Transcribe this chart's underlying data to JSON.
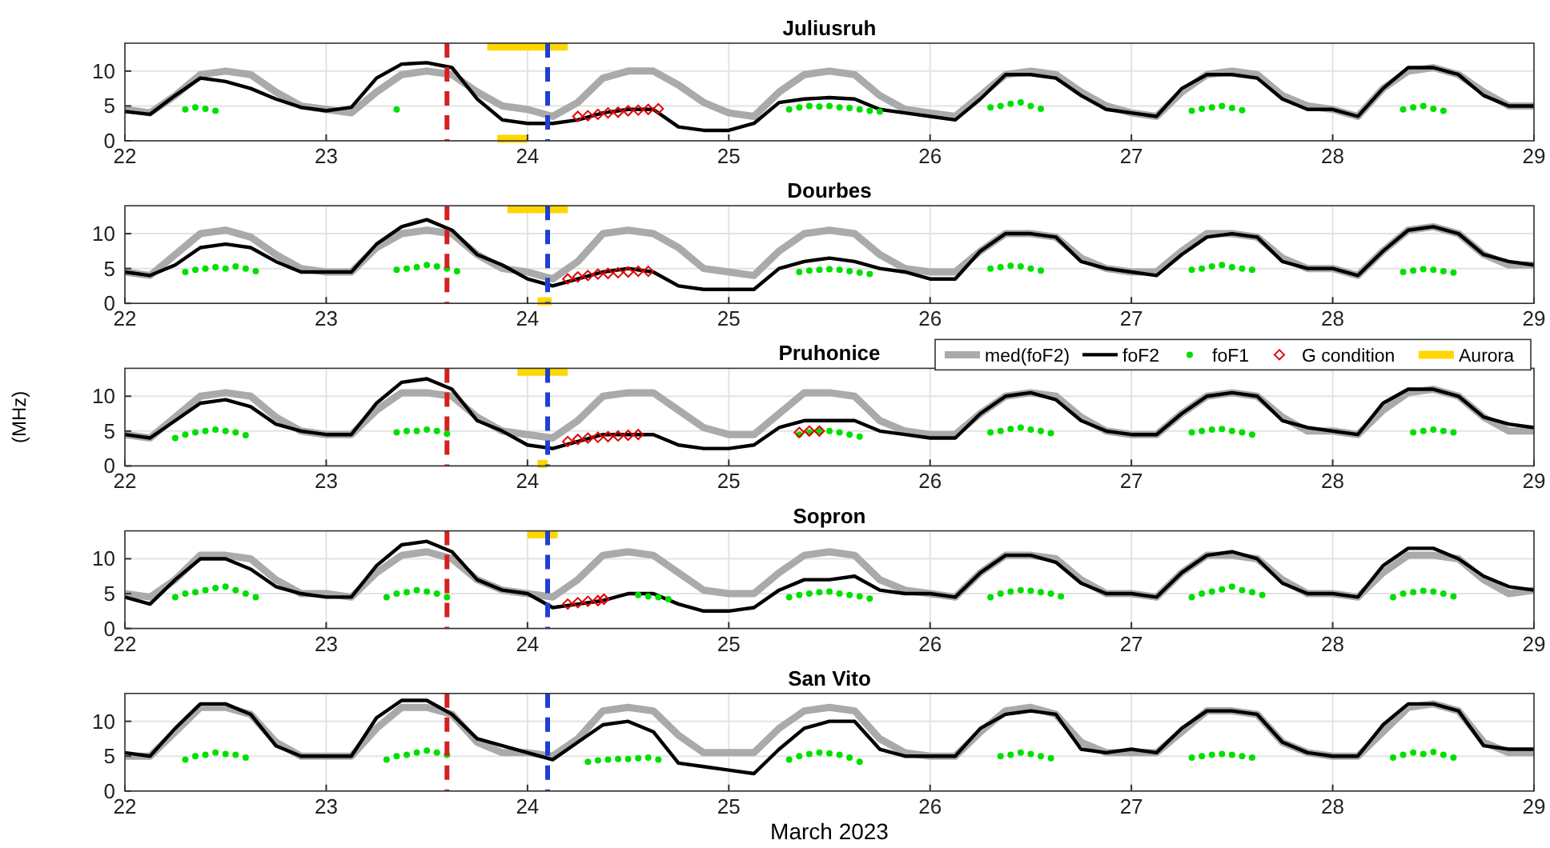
{
  "chart_data": [
    {
      "type": "line",
      "title": "Juliusruh",
      "xlim": [
        22,
        29
      ],
      "xticks": [
        22,
        23,
        24,
        25,
        26,
        27,
        28,
        29
      ],
      "ylim": [
        0,
        14
      ],
      "yticks": [
        0,
        5,
        10
      ],
      "grid": true,
      "x": [
        22,
        22.125,
        22.25,
        22.375,
        22.5,
        22.625,
        22.75,
        22.875,
        23,
        23.125,
        23.25,
        23.375,
        23.5,
        23.625,
        23.75,
        23.875,
        24,
        24.125,
        24.25,
        24.375,
        24.5,
        24.625,
        24.75,
        24.875,
        25,
        25.125,
        25.25,
        25.375,
        25.5,
        25.625,
        25.75,
        25.875,
        26,
        26.125,
        26.25,
        26.375,
        26.5,
        26.625,
        26.75,
        26.875,
        27,
        27.125,
        27.25,
        27.375,
        27.5,
        27.625,
        27.75,
        27.875,
        28,
        28.125,
        28.25,
        28.375,
        28.5,
        28.625,
        28.75,
        28.875,
        29
      ],
      "series": [
        {
          "color": "#aaaaaa",
          "values": [
            4.5,
            4,
            6.5,
            9.5,
            10,
            9.5,
            7,
            5,
            4.5,
            4,
            7,
            9.5,
            10,
            9.5,
            7,
            5,
            4.5,
            3.5,
            5.5,
            9,
            10,
            10,
            8,
            5.5,
            4,
            3.5,
            7,
            9.5,
            10,
            9.5,
            6.5,
            4.5,
            4,
            3.5,
            6.5,
            9.5,
            10,
            9.5,
            7,
            5,
            4,
            3.5,
            7,
            9.5,
            10,
            9.5,
            6.5,
            5,
            4.5,
            3.5,
            7.5,
            10,
            10.5,
            9.5,
            7,
            5,
            5
          ]
        },
        {
          "color": "#000000",
          "values": [
            4.2,
            3.8,
            6.5,
            9,
            8.5,
            7.5,
            6,
            4.8,
            4.3,
            4.8,
            9,
            11,
            11.2,
            10.5,
            6,
            3,
            2.5,
            2.5,
            3,
            4,
            4.5,
            4.5,
            2,
            1.5,
            1.5,
            2.5,
            5.5,
            6,
            6.2,
            6,
            4.5,
            4,
            3.5,
            3,
            6,
            9.5,
            9.5,
            9,
            6.5,
            4.5,
            4,
            3.5,
            7.5,
            9.5,
            9.5,
            9,
            6,
            4.5,
            4.5,
            3.5,
            7.5,
            10.5,
            10.5,
            9.5,
            6.5,
            5,
            5
          ]
        },
        {
          "type": "scatter",
          "color": "#00e000",
          "marker": "circle",
          "x": [
            22.3,
            22.35,
            22.4,
            22.45,
            23.35,
            25.3,
            25.35,
            25.4,
            25.45,
            25.5,
            25.55,
            25.6,
            25.65,
            25.7,
            25.75,
            26.3,
            26.35,
            26.4,
            26.45,
            26.5,
            26.55,
            27.3,
            27.35,
            27.4,
            27.45,
            27.5,
            27.55,
            28.35,
            28.4,
            28.45,
            28.5,
            28.55
          ],
          "values": [
            4.5,
            4.8,
            4.6,
            4.3,
            4.5,
            4.5,
            4.8,
            5,
            4.9,
            5,
            4.8,
            4.7,
            4.5,
            4.3,
            4.2,
            4.8,
            5,
            5.3,
            5.5,
            5,
            4.6,
            4.3,
            4.6,
            4.8,
            5,
            4.7,
            4.4,
            4.5,
            4.8,
            5,
            4.6,
            4.3
          ]
        },
        {
          "type": "scatter",
          "color": "#e00000",
          "marker": "diamond",
          "x": [
            24.25,
            24.3,
            24.35,
            24.4,
            24.45,
            24.5,
            24.55,
            24.6,
            24.65
          ],
          "values": [
            3.5,
            3.6,
            3.8,
            4,
            4.1,
            4.3,
            4.4,
            4.5,
            4.6
          ]
        },
        {
          "color": "#ffd700",
          "x": [
            23.8,
            24.2
          ],
          "values": [
            13.5,
            13.5
          ]
        },
        {
          "color": "#ffd700",
          "x": [
            23.85,
            24
          ],
          "values": [
            0.3,
            0.3
          ]
        }
      ],
      "ref_lines": [
        {
          "axis": "x",
          "value": 23.6,
          "color": "#d62020",
          "line_style": "dashed"
        },
        {
          "axis": "x",
          "value": 24.1,
          "color": "#1f3fd0",
          "line_style": "dashed"
        }
      ]
    },
    {
      "type": "line",
      "title": "Dourbes",
      "xlim": [
        22,
        29
      ],
      "xticks": [
        22,
        23,
        24,
        25,
        26,
        27,
        28,
        29
      ],
      "ylim": [
        0,
        14
      ],
      "yticks": [
        0,
        5,
        10
      ],
      "grid": true,
      "x": [
        22,
        22.125,
        22.25,
        22.375,
        22.5,
        22.625,
        22.75,
        22.875,
        23,
        23.125,
        23.25,
        23.375,
        23.5,
        23.625,
        23.75,
        23.875,
        24,
        24.125,
        24.25,
        24.375,
        24.5,
        24.625,
        24.75,
        24.875,
        25,
        25.125,
        25.25,
        25.375,
        25.5,
        25.625,
        25.75,
        25.875,
        26,
        26.125,
        26.25,
        26.375,
        26.5,
        26.625,
        26.75,
        26.875,
        27,
        27.125,
        27.25,
        27.375,
        27.5,
        27.625,
        27.75,
        27.875,
        28,
        28.125,
        28.25,
        28.375,
        28.5,
        28.625,
        28.75,
        28.875,
        29
      ],
      "series": [
        {
          "color": "#aaaaaa",
          "values": [
            4.5,
            4,
            7,
            10,
            10.5,
            9.5,
            7,
            5,
            4.5,
            4.5,
            8,
            10,
            10.5,
            10,
            7,
            5,
            4.5,
            3.5,
            6,
            10,
            10.5,
            10,
            8,
            5,
            4.5,
            4,
            7.5,
            10,
            10.5,
            10,
            7,
            5,
            4.5,
            4.5,
            7.5,
            10,
            10,
            9.5,
            6.5,
            5,
            4.5,
            4.5,
            7.5,
            10,
            10,
            9.5,
            6.5,
            5,
            5,
            4,
            7.5,
            10.5,
            11,
            10,
            7,
            5.5,
            5.5
          ]
        },
        {
          "color": "#000000",
          "values": [
            4.5,
            4,
            5.5,
            8,
            8.5,
            8,
            6,
            4.5,
            4.5,
            4.5,
            8.5,
            11,
            12,
            10.5,
            7,
            5.5,
            3.5,
            2.5,
            3.5,
            4.5,
            5,
            4.5,
            2.5,
            2,
            2,
            2,
            5,
            6,
            6.5,
            6,
            5,
            4.5,
            3.5,
            3.5,
            7.5,
            10,
            10,
            9.5,
            6,
            5,
            4.5,
            4,
            7,
            9.5,
            10,
            9.5,
            6,
            5,
            5,
            4,
            7.5,
            10.5,
            11,
            10,
            7,
            6,
            5.5
          ]
        },
        {
          "type": "scatter",
          "color": "#00e000",
          "marker": "circle",
          "x": [
            22.3,
            22.35,
            22.4,
            22.45,
            22.5,
            22.55,
            22.6,
            22.65,
            23.35,
            23.4,
            23.45,
            23.5,
            23.55,
            23.6,
            23.65,
            25.35,
            25.4,
            25.45,
            25.5,
            25.55,
            25.6,
            25.65,
            25.7,
            26.3,
            26.35,
            26.4,
            26.45,
            26.5,
            26.55,
            27.3,
            27.35,
            27.4,
            27.45,
            27.5,
            27.55,
            27.6,
            28.35,
            28.4,
            28.45,
            28.5,
            28.55,
            28.6
          ],
          "values": [
            4.5,
            4.8,
            5,
            5.2,
            5,
            5.3,
            5,
            4.6,
            4.8,
            5,
            5.2,
            5.5,
            5.3,
            5,
            4.6,
            4.5,
            4.7,
            4.8,
            4.9,
            4.8,
            4.6,
            4.4,
            4.2,
            5,
            5.2,
            5.4,
            5.3,
            5,
            4.7,
            4.8,
            5,
            5.3,
            5.5,
            5.2,
            5,
            4.8,
            4.5,
            4.7,
            4.9,
            4.8,
            4.6,
            4.4
          ]
        },
        {
          "type": "scatter",
          "color": "#e00000",
          "marker": "diamond",
          "x": [
            24.2,
            24.25,
            24.3,
            24.35,
            24.4,
            24.45,
            24.5,
            24.55,
            24.6
          ],
          "values": [
            3.5,
            3.8,
            4,
            4.2,
            4.3,
            4.4,
            4.5,
            4.6,
            4.6
          ]
        },
        {
          "color": "#ffd700",
          "x": [
            23.9,
            24.2
          ],
          "values": [
            13.5,
            13.5
          ]
        },
        {
          "color": "#ffd700",
          "x": [
            24.05,
            24.12
          ],
          "values": [
            0.3,
            0.3
          ]
        }
      ],
      "ref_lines": [
        {
          "axis": "x",
          "value": 23.6,
          "color": "#d62020",
          "line_style": "dashed"
        },
        {
          "axis": "x",
          "value": 24.1,
          "color": "#1f3fd0",
          "line_style": "dashed"
        }
      ]
    },
    {
      "type": "line",
      "title": "Pruhonice",
      "ylabel": "(MHz)",
      "legend": "top right",
      "xlim": [
        22,
        29
      ],
      "xticks": [
        22,
        23,
        24,
        25,
        26,
        27,
        28,
        29
      ],
      "ylim": [
        0,
        14
      ],
      "yticks": [
        0,
        5,
        10
      ],
      "grid": true,
      "x": [
        22,
        22.125,
        22.25,
        22.375,
        22.5,
        22.625,
        22.75,
        22.875,
        23,
        23.125,
        23.25,
        23.375,
        23.5,
        23.625,
        23.75,
        23.875,
        24,
        24.125,
        24.25,
        24.375,
        24.5,
        24.625,
        24.75,
        24.875,
        25,
        25.125,
        25.25,
        25.375,
        25.5,
        25.625,
        25.75,
        25.875,
        26,
        26.125,
        26.25,
        26.375,
        26.5,
        26.625,
        26.75,
        26.875,
        27,
        27.125,
        27.25,
        27.375,
        27.5,
        27.625,
        27.75,
        27.875,
        28,
        28.125,
        28.25,
        28.375,
        28.5,
        28.625,
        28.75,
        28.875,
        29
      ],
      "series": [
        {
          "name": "med(foF2)",
          "color": "#aaaaaa",
          "values": [
            4.5,
            4,
            7,
            10,
            10.5,
            10,
            7,
            5,
            4.5,
            4.5,
            8,
            10.5,
            10.5,
            10,
            7,
            5,
            4.5,
            4,
            6.5,
            10,
            10.5,
            10.5,
            8,
            5.5,
            4.5,
            4.5,
            7.5,
            10.5,
            10.5,
            10,
            6.5,
            5,
            4.5,
            4.5,
            7.5,
            10,
            10.5,
            10,
            7,
            5,
            4.5,
            4.5,
            7.5,
            10,
            10.5,
            10,
            7,
            5,
            5,
            4.5,
            8,
            10.5,
            11,
            10,
            7,
            5,
            5
          ]
        },
        {
          "name": "foF2",
          "color": "#000000",
          "values": [
            4.5,
            4,
            6.5,
            9,
            9.5,
            8.5,
            6,
            5,
            4.5,
            4.5,
            9,
            12,
            12.5,
            11,
            6.5,
            5,
            3,
            2.5,
            3.5,
            4.5,
            4.5,
            4.5,
            3,
            2.5,
            2.5,
            3,
            5.5,
            6.5,
            6.5,
            6.5,
            5,
            4.5,
            4,
            4,
            7.5,
            10,
            10.5,
            9.5,
            6.5,
            5,
            4.5,
            4.5,
            7.5,
            10,
            10.5,
            10,
            6.5,
            5.5,
            5,
            4.5,
            9,
            11,
            11,
            10,
            7,
            6,
            5.5
          ]
        },
        {
          "name": "foF1",
          "type": "scatter",
          "color": "#00e000",
          "marker": "circle",
          "x": [
            22.25,
            22.3,
            22.35,
            22.4,
            22.45,
            22.5,
            22.55,
            22.6,
            23.35,
            23.4,
            23.45,
            23.5,
            23.55,
            23.6,
            25.35,
            25.4,
            25.45,
            25.5,
            25.55,
            25.6,
            25.65,
            26.3,
            26.35,
            26.4,
            26.45,
            26.5,
            26.55,
            26.6,
            27.3,
            27.35,
            27.4,
            27.45,
            27.5,
            27.55,
            27.6,
            28.4,
            28.45,
            28.5,
            28.55,
            28.6
          ],
          "values": [
            4,
            4.5,
            4.8,
            5,
            5.2,
            5,
            4.8,
            4.4,
            4.8,
            5,
            5,
            5.2,
            5,
            4.6,
            4.5,
            4.8,
            5,
            5,
            4.8,
            4.5,
            4.2,
            4.8,
            5,
            5.3,
            5.5,
            5.2,
            5,
            4.7,
            4.8,
            5,
            5.2,
            5.3,
            5,
            4.8,
            4.5,
            4.8,
            5,
            5.2,
            5,
            4.8
          ]
        },
        {
          "name": "G condition",
          "type": "scatter",
          "color": "#e00000",
          "marker": "diamond",
          "x": [
            24.2,
            24.25,
            24.3,
            24.35,
            24.4,
            24.45,
            24.5,
            24.55,
            25.35,
            25.4,
            25.45
          ],
          "values": [
            3.5,
            3.8,
            4,
            4.1,
            4.2,
            4.3,
            4.4,
            4.5,
            4.8,
            5,
            5
          ]
        },
        {
          "name": "Aurora",
          "color": "#ffd700",
          "x": [
            23.95,
            24.2
          ],
          "values": [
            13.5,
            13.5
          ]
        },
        {
          "color": "#ffd700",
          "x": [
            24.05,
            24.1
          ],
          "values": [
            0.3,
            0.3
          ]
        }
      ],
      "ref_lines": [
        {
          "axis": "x",
          "value": 23.6,
          "color": "#d62020",
          "line_style": "dashed"
        },
        {
          "axis": "x",
          "value": 24.1,
          "color": "#1f3fd0",
          "line_style": "dashed"
        }
      ]
    },
    {
      "type": "line",
      "title": "Sopron",
      "xlim": [
        22,
        29
      ],
      "xticks": [
        22,
        23,
        24,
        25,
        26,
        27,
        28,
        29
      ],
      "ylim": [
        0,
        14
      ],
      "yticks": [
        0,
        5,
        10
      ],
      "grid": true,
      "x": [
        22,
        22.125,
        22.25,
        22.375,
        22.5,
        22.625,
        22.75,
        22.875,
        23,
        23.125,
        23.25,
        23.375,
        23.5,
        23.625,
        23.75,
        23.875,
        24,
        24.125,
        24.25,
        24.375,
        24.5,
        24.625,
        24.75,
        24.875,
        25,
        25.125,
        25.25,
        25.375,
        25.5,
        25.625,
        25.75,
        25.875,
        26,
        26.125,
        26.25,
        26.375,
        26.5,
        26.625,
        26.75,
        26.875,
        27,
        27.125,
        27.25,
        27.375,
        27.5,
        27.625,
        27.75,
        27.875,
        28,
        28.125,
        28.25,
        28.375,
        28.5,
        28.625,
        28.75,
        28.875,
        29
      ],
      "series": [
        {
          "color": "#aaaaaa",
          "values": [
            5,
            4.5,
            7,
            10.5,
            10.5,
            10,
            7,
            5,
            5,
            4.5,
            8,
            10.5,
            11,
            10,
            7,
            5.5,
            5,
            4.5,
            7,
            10.5,
            11,
            10.5,
            8,
            5.5,
            5,
            5,
            8,
            10.5,
            11,
            10.5,
            7,
            5.5,
            5,
            4.5,
            8,
            10.5,
            10.5,
            10,
            7,
            5,
            5,
            4.5,
            8,
            10.5,
            10.5,
            10,
            7,
            5,
            5,
            4.5,
            8,
            10.5,
            10.5,
            10,
            7,
            5,
            5.5
          ]
        },
        {
          "color": "#000000",
          "values": [
            4.5,
            3.5,
            7,
            10,
            10,
            8.5,
            6,
            5,
            4.5,
            4.5,
            9,
            12,
            12.5,
            11,
            7,
            5.5,
            5,
            3,
            3.5,
            4,
            5,
            5,
            3.5,
            2.5,
            2.5,
            3,
            5.5,
            7,
            7,
            7.5,
            5.5,
            5,
            5,
            4.5,
            8,
            10.5,
            10.5,
            9.5,
            6.5,
            5,
            5,
            4.5,
            8,
            10.5,
            11,
            10,
            6.5,
            5,
            5,
            4.5,
            9,
            11.5,
            11.5,
            10,
            7.5,
            6,
            5.5
          ]
        },
        {
          "type": "scatter",
          "color": "#00e000",
          "marker": "circle",
          "x": [
            22.25,
            22.3,
            22.35,
            22.4,
            22.45,
            22.5,
            22.55,
            22.6,
            22.65,
            23.3,
            23.35,
            23.4,
            23.45,
            23.5,
            23.55,
            23.6,
            24.55,
            24.6,
            24.65,
            24.7,
            25.3,
            25.35,
            25.4,
            25.45,
            25.5,
            25.55,
            25.6,
            25.65,
            25.7,
            26.3,
            26.35,
            26.4,
            26.45,
            26.5,
            26.55,
            26.6,
            26.65,
            27.3,
            27.35,
            27.4,
            27.45,
            27.5,
            27.55,
            27.6,
            27.65,
            28.3,
            28.35,
            28.4,
            28.45,
            28.5,
            28.55,
            28.6
          ],
          "values": [
            4.5,
            5,
            5.2,
            5.5,
            5.8,
            6,
            5.5,
            5,
            4.5,
            4.5,
            5,
            5.2,
            5.5,
            5.3,
            5,
            4.5,
            4.8,
            4.6,
            4.5,
            4.2,
            4.5,
            4.8,
            5,
            5.2,
            5.3,
            5,
            4.8,
            4.6,
            4.3,
            4.5,
            5,
            5.3,
            5.5,
            5.4,
            5.2,
            5,
            4.6,
            4.5,
            5,
            5.3,
            5.6,
            6,
            5.5,
            5.2,
            4.8,
            4.5,
            5,
            5.2,
            5.4,
            5.3,
            5,
            4.6
          ]
        },
        {
          "type": "scatter",
          "color": "#e00000",
          "marker": "diamond",
          "x": [
            24.2,
            24.25,
            24.3,
            24.35,
            24.38
          ],
          "values": [
            3.5,
            3.7,
            3.9,
            4,
            4.2
          ]
        },
        {
          "color": "#ffd700",
          "x": [
            24,
            24.15
          ],
          "values": [
            13.5,
            13.5
          ]
        }
      ],
      "ref_lines": [
        {
          "axis": "x",
          "value": 23.6,
          "color": "#d62020",
          "line_style": "dashed"
        },
        {
          "axis": "x",
          "value": 24.1,
          "color": "#1f3fd0",
          "line_style": "dashed"
        }
      ]
    },
    {
      "type": "line",
      "title": "San Vito",
      "xlabel": "March 2023",
      "xlim": [
        22,
        29
      ],
      "xticks": [
        22,
        23,
        24,
        25,
        26,
        27,
        28,
        29
      ],
      "ylim": [
        0,
        14
      ],
      "yticks": [
        0,
        5,
        10
      ],
      "grid": true,
      "x": [
        22,
        22.125,
        22.25,
        22.375,
        22.5,
        22.625,
        22.75,
        22.875,
        23,
        23.125,
        23.25,
        23.375,
        23.5,
        23.625,
        23.75,
        23.875,
        24,
        24.125,
        24.25,
        24.375,
        24.5,
        24.625,
        24.75,
        24.875,
        25,
        25.125,
        25.25,
        25.375,
        25.5,
        25.625,
        25.75,
        25.875,
        26,
        26.125,
        26.25,
        26.375,
        26.5,
        26.625,
        26.75,
        26.875,
        27,
        27.125,
        27.25,
        27.375,
        27.5,
        27.625,
        27.75,
        27.875,
        28,
        28.125,
        28.25,
        28.375,
        28.5,
        28.625,
        28.75,
        28.875,
        29
      ],
      "series": [
        {
          "color": "#aaaaaa",
          "values": [
            5,
            5,
            8.5,
            12,
            12,
            11,
            7,
            5,
            5,
            5,
            9,
            12,
            12,
            11,
            7,
            5.5,
            5.5,
            5,
            7.5,
            11.5,
            12,
            11.5,
            8,
            5.5,
            5.5,
            5.5,
            9,
            11.5,
            12,
            11.5,
            7.5,
            5.5,
            5,
            5,
            8.5,
            11.5,
            12,
            11,
            7,
            5.5,
            5.5,
            5.5,
            8.5,
            11.5,
            11.5,
            11,
            7,
            5.5,
            5,
            5,
            8.5,
            12,
            12.5,
            11.5,
            7,
            5.5,
            5.5
          ]
        },
        {
          "color": "#000000",
          "values": [
            5.5,
            5,
            9,
            12.5,
            12.5,
            11,
            6.5,
            5,
            5,
            5,
            10.5,
            13,
            13,
            11,
            7.5,
            6.5,
            5.5,
            4.5,
            7,
            9.5,
            10,
            8.5,
            4,
            3.5,
            3,
            2.5,
            6,
            9,
            10,
            10,
            6,
            5,
            5,
            5,
            9,
            11,
            11.5,
            11,
            6,
            5.5,
            6,
            5.5,
            9,
            11.5,
            11.5,
            11,
            7,
            5.5,
            5,
            5,
            9.5,
            12.5,
            12.5,
            11.5,
            6.5,
            6,
            6
          ]
        },
        {
          "type": "scatter",
          "color": "#00e000",
          "marker": "circle",
          "x": [
            22.3,
            22.35,
            22.4,
            22.45,
            22.5,
            22.55,
            22.6,
            23.3,
            23.35,
            23.4,
            23.45,
            23.5,
            23.55,
            23.6,
            24.3,
            24.35,
            24.4,
            24.45,
            24.5,
            24.55,
            24.6,
            24.65,
            25.3,
            25.35,
            25.4,
            25.45,
            25.5,
            25.55,
            25.6,
            25.65,
            26.35,
            26.4,
            26.45,
            26.5,
            26.55,
            26.6,
            27.3,
            27.35,
            27.4,
            27.45,
            27.5,
            27.55,
            27.6,
            28.3,
            28.35,
            28.4,
            28.45,
            28.5,
            28.55,
            28.6
          ],
          "values": [
            4.5,
            5,
            5.2,
            5.5,
            5.3,
            5.2,
            4.8,
            4.5,
            5,
            5.2,
            5.5,
            5.8,
            5.5,
            5.2,
            4.2,
            4.4,
            4.5,
            4.6,
            4.6,
            4.7,
            4.8,
            4.5,
            4.5,
            5,
            5.3,
            5.5,
            5.4,
            5.2,
            4.8,
            4.2,
            5,
            5.2,
            5.5,
            5.3,
            5,
            4.7,
            4.8,
            5,
            5.2,
            5.3,
            5.2,
            5,
            4.8,
            4.8,
            5.2,
            5.5,
            5.3,
            5.6,
            5.2,
            4.8
          ]
        }
      ],
      "ref_lines": [
        {
          "axis": "x",
          "value": 23.6,
          "color": "#d62020",
          "line_style": "dashed"
        },
        {
          "axis": "x",
          "value": 24.1,
          "color": "#1f3fd0",
          "line_style": "dashed"
        }
      ]
    }
  ]
}
